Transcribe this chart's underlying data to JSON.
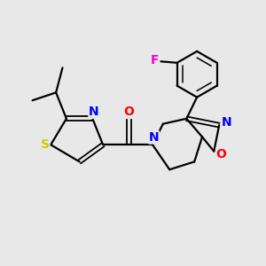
{
  "background_color": "#e8e8e8",
  "bond_color": "#000000",
  "atom_colors": {
    "S": "#cccc00",
    "N": "#0000ff",
    "O": "#ff0000",
    "F": "#ff00cc"
  }
}
